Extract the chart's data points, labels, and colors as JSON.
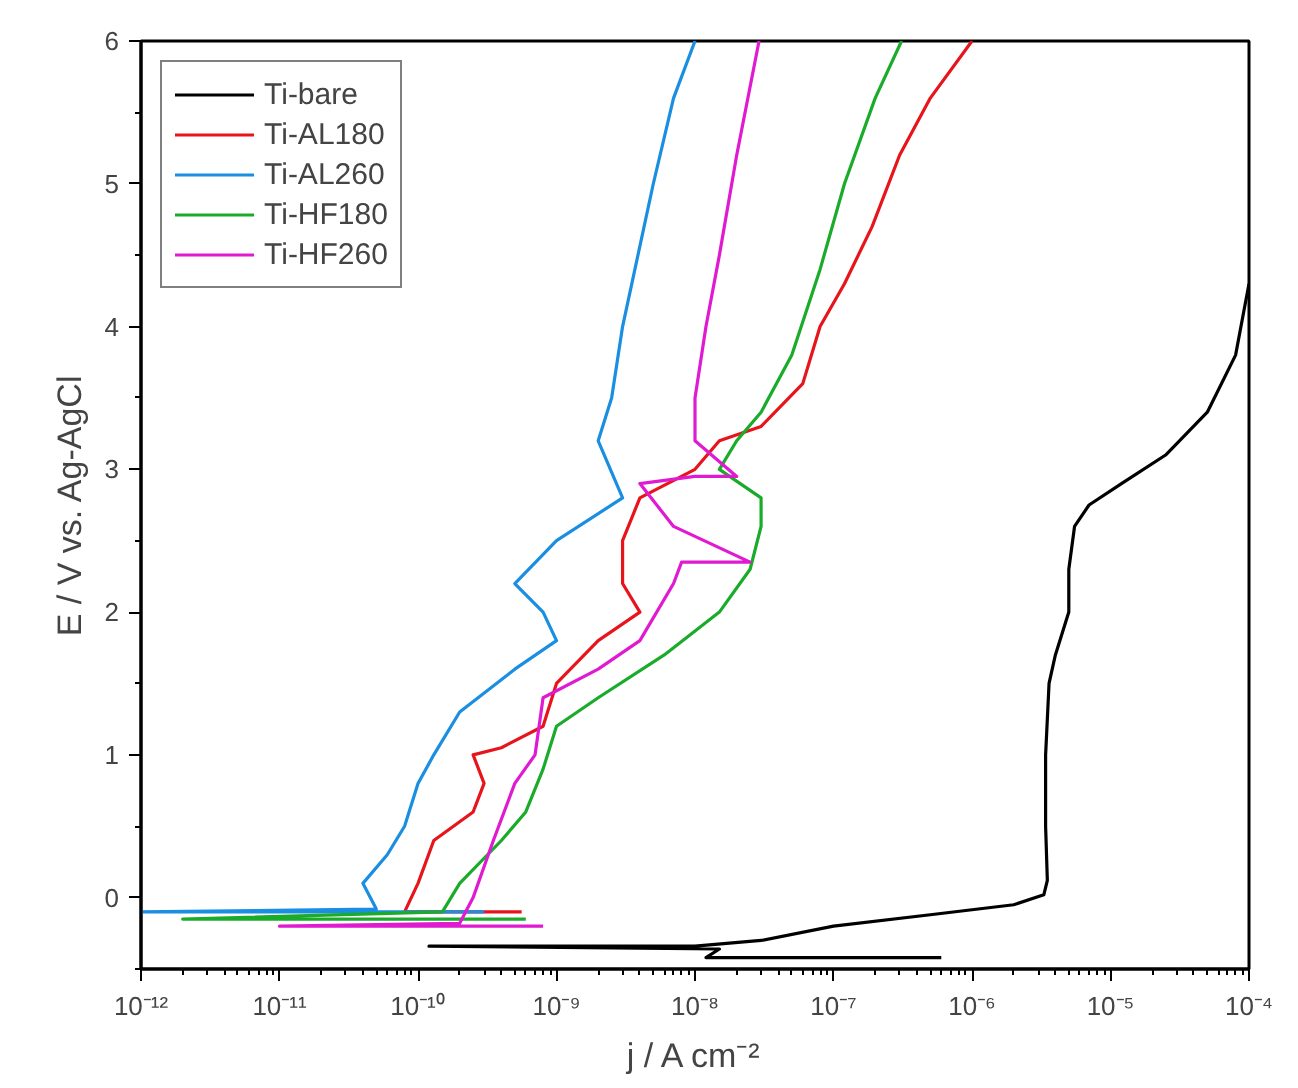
{
  "chart_data": {
    "type": "line",
    "xlabel": "j / A cm⁻²",
    "ylabel": "E / V vs. Ag-AgCl",
    "log": "x",
    "legend": "top left",
    "grid": false,
    "xlim": [
      1e-12,
      0.0001
    ],
    "ylim": [
      -0.5,
      6
    ],
    "xticks": [
      {
        "value": 1e-12,
        "label": "10⁻¹²"
      },
      {
        "value": 1e-11,
        "label": "10⁻¹¹"
      },
      {
        "value": 1e-10,
        "label": "10⁻¹⁰"
      },
      {
        "value": 1e-09,
        "label": "10⁻⁹"
      },
      {
        "value": 1e-08,
        "label": "10⁻⁸"
      },
      {
        "value": 1e-07,
        "label": "10⁻⁷"
      },
      {
        "value": 1e-06,
        "label": "10⁻⁶"
      },
      {
        "value": 1e-05,
        "label": "10⁻⁵"
      },
      {
        "value": 0.0001,
        "label": "10⁻⁴"
      }
    ],
    "yticks": [
      0,
      1,
      2,
      3,
      4,
      5,
      6
    ],
    "series": [
      {
        "name": "Ti-bare",
        "color": "#000000",
        "x": [
          6e-07,
          1.2e-08,
          1.5e-08,
          1.2e-10,
          1e-08,
          3e-08,
          1e-07,
          5e-07,
          2e-06,
          3.3e-06,
          3.5e-06,
          3.4e-06,
          3.4e-06,
          3.6e-06,
          4e-06,
          5e-06,
          5e-06,
          5.5e-06,
          7e-06,
          1.2e-05,
          2.5e-05,
          5e-05,
          8e-05,
          0.0001
        ],
        "values": [
          -0.42,
          -0.42,
          -0.36,
          -0.34,
          -0.34,
          -0.3,
          -0.2,
          -0.12,
          -0.05,
          0.02,
          0.12,
          0.5,
          1.0,
          1.5,
          1.7,
          2.0,
          2.3,
          2.6,
          2.75,
          2.9,
          3.1,
          3.4,
          3.8,
          4.3
        ]
      },
      {
        "name": "Ti-AL180",
        "color": "#e8141b",
        "x": [
          5.6e-10,
          8e-11,
          1e-10,
          1.3e-10,
          2.5e-10,
          3e-10,
          2.5e-10,
          4e-10,
          8e-10,
          1e-09,
          2e-09,
          4e-09,
          3e-09,
          3e-09,
          4e-09,
          1e-08,
          1.5e-08,
          3e-08,
          6e-08,
          8e-08,
          1.2e-07,
          1.9e-07,
          3e-07,
          5e-07,
          1e-06
        ],
        "values": [
          -0.1,
          -0.1,
          0.1,
          0.4,
          0.6,
          0.8,
          1.0,
          1.05,
          1.2,
          1.5,
          1.8,
          2.0,
          2.2,
          2.5,
          2.8,
          3.0,
          3.2,
          3.3,
          3.6,
          4.0,
          4.3,
          4.7,
          5.2,
          5.6,
          6.0
        ]
      },
      {
        "name": "Ti-AL260",
        "color": "#1a8ee0",
        "x": [
          3e-10,
          1e-12,
          5e-11,
          4e-11,
          6e-11,
          8e-11,
          1e-10,
          1.3e-10,
          2e-10,
          5e-10,
          1e-09,
          8e-10,
          5e-10,
          1e-09,
          3e-09,
          2e-09,
          2.5e-09,
          3e-09,
          5e-09,
          7e-09,
          1e-08
        ],
        "values": [
          -0.1,
          -0.1,
          -0.08,
          0.1,
          0.3,
          0.5,
          0.8,
          1.0,
          1.3,
          1.6,
          1.8,
          2.0,
          2.2,
          2.5,
          2.8,
          3.2,
          3.5,
          4.0,
          5.0,
          5.6,
          6.0
        ]
      },
      {
        "name": "Ti-HF180",
        "color": "#1bab2a",
        "x": [
          6e-10,
          2e-12,
          1.5e-10,
          2e-10,
          4e-10,
          6e-10,
          8e-10,
          1e-09,
          2e-09,
          6e-09,
          1.5e-08,
          2.5e-08,
          3e-08,
          3e-08,
          1.5e-08,
          2e-08,
          3e-08,
          5e-08,
          8e-08,
          1.2e-07,
          2e-07,
          3.1e-07
        ],
        "values": [
          -0.15,
          -0.15,
          -0.1,
          0.1,
          0.4,
          0.6,
          0.9,
          1.2,
          1.4,
          1.7,
          2.0,
          2.3,
          2.6,
          2.8,
          3.0,
          3.2,
          3.4,
          3.8,
          4.4,
          5.0,
          5.6,
          6.0
        ]
      },
      {
        "name": "Ti-HF260",
        "color": "#e01ad0",
        "x": [
          8e-10,
          1e-11,
          2e-10,
          2.5e-10,
          3.5e-10,
          5e-10,
          7e-10,
          8e-10,
          2e-09,
          4e-09,
          7e-09,
          8e-09,
          2.5e-08,
          7e-09,
          4e-09,
          1e-08,
          2e-08,
          1e-08,
          1e-08,
          1.2e-08,
          1.5e-08,
          2e-08,
          2.9e-08
        ],
        "values": [
          -0.2,
          -0.2,
          -0.18,
          0,
          0.4,
          0.8,
          1.0,
          1.4,
          1.6,
          1.8,
          2.2,
          2.35,
          2.35,
          2.6,
          2.9,
          2.95,
          2.95,
          3.2,
          3.5,
          4.0,
          4.5,
          5.2,
          6.0
        ]
      }
    ]
  }
}
